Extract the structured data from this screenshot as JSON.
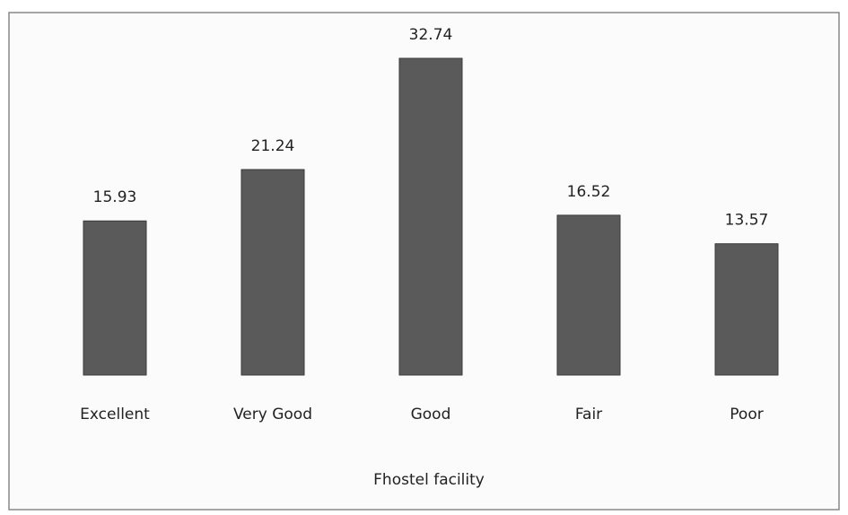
{
  "chart_data": {
    "type": "bar",
    "x_label": "Fhostel facility",
    "categories": [
      "Excellent",
      "Very Good",
      "Good",
      "Fair",
      "Poor"
    ],
    "values": [
      15.93,
      21.24,
      32.74,
      16.52,
      13.57
    ],
    "color": "#5a5a5a"
  }
}
